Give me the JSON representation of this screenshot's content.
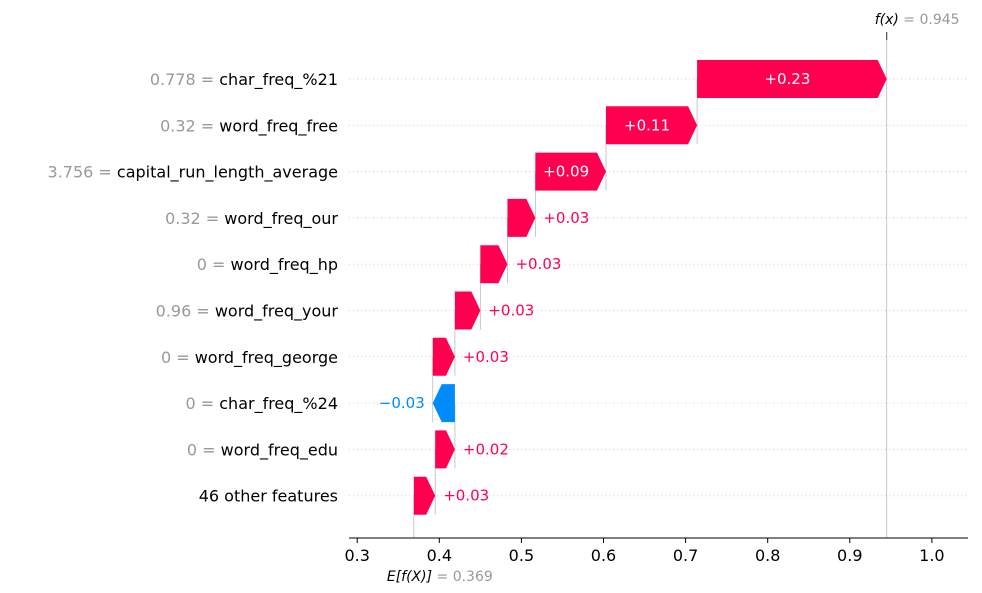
{
  "chart_data": {
    "type": "waterfall",
    "base_value": 0.369,
    "base_value_label": "0.369",
    "base_label_prefix": "E[f(X)]",
    "output_value": 0.945,
    "output_value_label": "0.945",
    "output_label_prefix": "f(x)",
    "xlim": [
      0.29,
      1.044
    ],
    "xticks": [
      0.3,
      0.4,
      0.5,
      0.6,
      0.7,
      0.8,
      0.9,
      1.0
    ],
    "xtick_labels": [
      "0.3",
      "0.4",
      "0.5",
      "0.6",
      "0.7",
      "0.8",
      "0.9",
      "1.0"
    ],
    "rows": [
      {
        "value_label": "0.778",
        "feature": "char_freq_%21",
        "start": 0.714,
        "end": 0.945,
        "contribution_label": "+0.23"
      },
      {
        "value_label": "0.32",
        "feature": "word_freq_free",
        "start": 0.603,
        "end": 0.714,
        "contribution_label": "+0.11"
      },
      {
        "value_label": "3.756",
        "feature": "capital_run_length_average",
        "start": 0.517,
        "end": 0.603,
        "contribution_label": "+0.09"
      },
      {
        "value_label": "0.32",
        "feature": "word_freq_our",
        "start": 0.483,
        "end": 0.517,
        "contribution_label": "+0.03"
      },
      {
        "value_label": "0",
        "feature": "word_freq_hp",
        "start": 0.45,
        "end": 0.483,
        "contribution_label": "+0.03"
      },
      {
        "value_label": "0.96",
        "feature": "word_freq_your",
        "start": 0.419,
        "end": 0.45,
        "contribution_label": "+0.03"
      },
      {
        "value_label": "0",
        "feature": "word_freq_george",
        "start": 0.392,
        "end": 0.419,
        "contribution_label": "+0.03"
      },
      {
        "value_label": "0",
        "feature": "char_freq_%24",
        "start": 0.419,
        "end": 0.392,
        "contribution_label": "−0.03"
      },
      {
        "value_label": "0",
        "feature": "word_freq_edu",
        "start": 0.395,
        "end": 0.419,
        "contribution_label": "+0.02"
      },
      {
        "value_label": "",
        "feature": "46 other features",
        "start": 0.369,
        "end": 0.395,
        "contribution_label": "+0.03"
      }
    ],
    "colors": {
      "positive": "#ff0051",
      "negative": "#008bfb",
      "muted": "#999999",
      "text": "#000000"
    }
  }
}
